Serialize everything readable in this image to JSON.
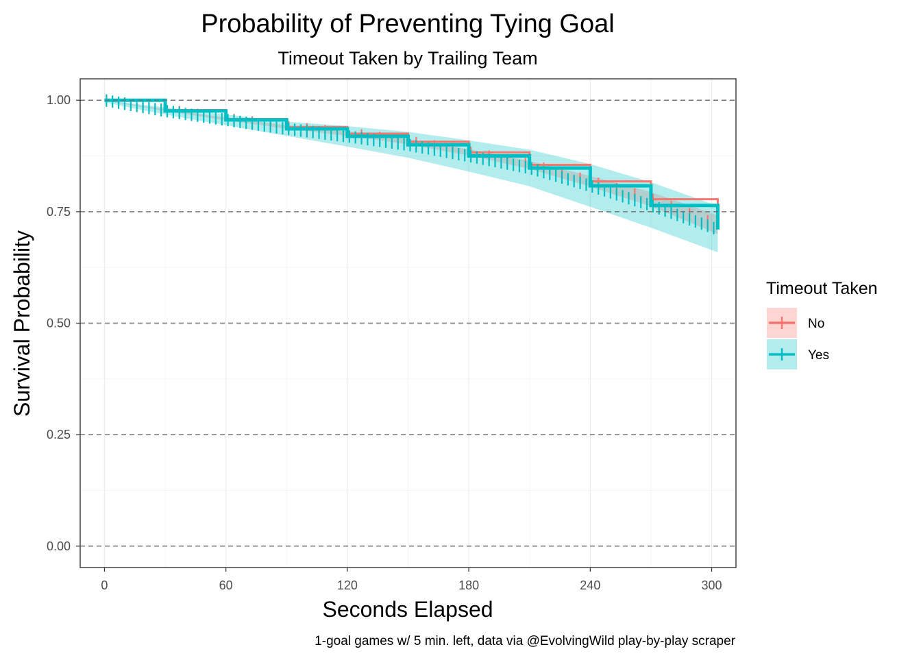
{
  "chart_data": {
    "type": "line",
    "title": "Probability of Preventing Tying Goal",
    "subtitle": "Timeout Taken by Trailing Team",
    "xlabel": "Seconds Elapsed",
    "ylabel": "Survival Probability",
    "caption": "1-goal games w/ 5 min. left, data via @EvolvingWild play-by-play scraper",
    "xlim": [
      -12,
      312
    ],
    "ylim": [
      -0.048,
      1.048
    ],
    "x_ticks": [
      0,
      60,
      120,
      180,
      240,
      300
    ],
    "x_tick_labels": [
      "0",
      "60",
      "120",
      "180",
      "240",
      "300"
    ],
    "y_ticks": [
      0,
      0.25,
      0.5,
      0.75,
      1.0
    ],
    "y_tick_labels": [
      "0.00",
      "0.25",
      "0.50",
      "0.75",
      "1.00"
    ],
    "hlines": [
      0,
      0.25,
      0.5,
      0.75,
      1.0
    ],
    "grid": true,
    "legend": {
      "title": "Timeout Taken",
      "position": "right"
    },
    "series": [
      {
        "name": "No",
        "color": "#F8766D",
        "fill": "#F8766D",
        "x": [
          0,
          30,
          60,
          90,
          120,
          150,
          180,
          210,
          240,
          270,
          303
        ],
        "y": [
          1.0,
          0.978,
          0.958,
          0.94,
          0.925,
          0.907,
          0.883,
          0.855,
          0.818,
          0.778,
          0.72
        ],
        "lower": [
          0.999,
          0.976,
          0.955,
          0.936,
          0.92,
          0.901,
          0.876,
          0.846,
          0.806,
          0.762,
          0.7
        ],
        "upper": [
          1.0,
          0.98,
          0.961,
          0.944,
          0.93,
          0.913,
          0.89,
          0.864,
          0.83,
          0.794,
          0.742
        ]
      },
      {
        "name": "Yes",
        "color": "#00BFC4",
        "fill": "#00BFC4",
        "x": [
          0,
          30,
          60,
          90,
          120,
          150,
          180,
          210,
          240,
          270,
          303
        ],
        "y": [
          1.0,
          0.976,
          0.956,
          0.936,
          0.919,
          0.9,
          0.875,
          0.848,
          0.808,
          0.764,
          0.71
        ],
        "lower": [
          0.995,
          0.968,
          0.944,
          0.92,
          0.896,
          0.871,
          0.84,
          0.807,
          0.761,
          0.714,
          0.659
        ],
        "upper": [
          1.0,
          0.984,
          0.968,
          0.952,
          0.942,
          0.929,
          0.91,
          0.889,
          0.857,
          0.816,
          0.763
        ]
      }
    ]
  }
}
